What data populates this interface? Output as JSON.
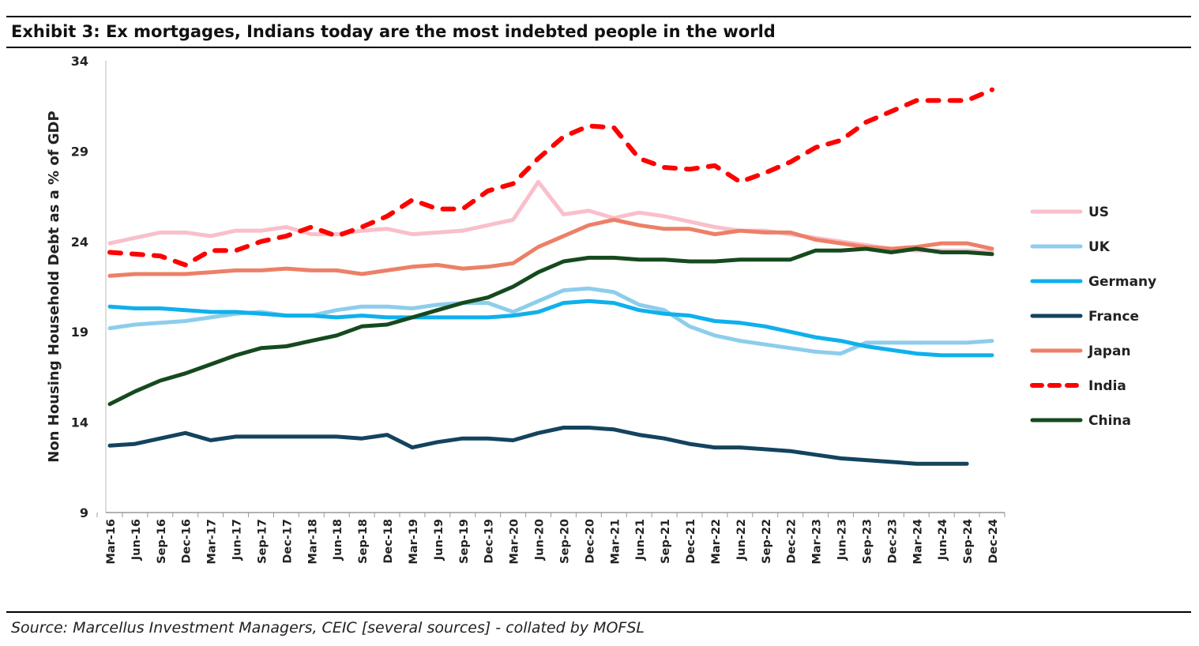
{
  "title": "Exhibit 3: Ex mortgages, Indians today are the most indebted people in the world",
  "source": "Source: Marcellus Investment Managers, CEIC [several sources] - collated by MOFSL",
  "chart_data": {
    "type": "line",
    "title": "Exhibit 3: Ex mortgages, Indians today are the most indebted people in the world",
    "xlabel": "",
    "ylabel": "Non Housing Household Debt as a % of GDP",
    "ylim": [
      9,
      34
    ],
    "yticks": [
      "9",
      "14",
      "19",
      "24",
      "29",
      "34"
    ],
    "grid": false,
    "legend_position": "right",
    "categories": [
      "Mar-16",
      "Jun-16",
      "Sep-16",
      "Dec-16",
      "Mar-17",
      "Jun-17",
      "Sep-17",
      "Dec-17",
      "Mar-18",
      "Jun-18",
      "Sep-18",
      "Dec-18",
      "Mar-19",
      "Jun-19",
      "Sep-19",
      "Dec-19",
      "Mar-20",
      "Jun-20",
      "Sep-20",
      "Dec-20",
      "Mar-21",
      "Jun-21",
      "Sep-21",
      "Dec-21",
      "Mar-22",
      "Jun-22",
      "Sep-22",
      "Dec-22",
      "Mar-23",
      "Jun-23",
      "Sep-23",
      "Dec-23",
      "Mar-24",
      "Jun-24",
      "Sep-24",
      "Dec-24"
    ],
    "series": [
      {
        "name": "US",
        "color": "#F9BFCB",
        "dash": false,
        "values": [
          23.9,
          24.2,
          24.5,
          24.5,
          24.3,
          24.6,
          24.6,
          24.8,
          24.4,
          24.4,
          24.6,
          24.7,
          24.4,
          24.5,
          24.6,
          24.9,
          25.2,
          27.3,
          25.5,
          25.7,
          25.3,
          25.6,
          25.4,
          25.1,
          24.8,
          24.6,
          24.6,
          24.4,
          24.2,
          24.0,
          23.8,
          23.6,
          23.5,
          23.5,
          23.5,
          23.4
        ]
      },
      {
        "name": "UK",
        "color": "#8DCDEB",
        "dash": false,
        "values": [
          19.2,
          19.4,
          19.5,
          19.6,
          19.8,
          20.0,
          20.1,
          19.9,
          19.9,
          20.2,
          20.4,
          20.4,
          20.3,
          20.5,
          20.6,
          20.6,
          20.1,
          20.7,
          21.3,
          21.4,
          21.2,
          20.5,
          20.2,
          19.3,
          18.8,
          18.5,
          18.3,
          18.1,
          17.9,
          17.8,
          18.4,
          18.4,
          18.4,
          18.4,
          18.4,
          18.5
        ]
      },
      {
        "name": "Germany",
        "color": "#0FB0EC",
        "dash": false,
        "values": [
          20.4,
          20.3,
          20.3,
          20.2,
          20.1,
          20.1,
          20.0,
          19.9,
          19.9,
          19.8,
          19.9,
          19.8,
          19.8,
          19.8,
          19.8,
          19.8,
          19.9,
          20.1,
          20.6,
          20.7,
          20.6,
          20.2,
          20.0,
          19.9,
          19.6,
          19.5,
          19.3,
          19.0,
          18.7,
          18.5,
          18.2,
          18.0,
          17.8,
          17.7,
          17.7,
          17.7
        ]
      },
      {
        "name": "France",
        "color": "#14435E",
        "dash": false,
        "values": [
          12.7,
          12.8,
          13.1,
          13.4,
          13.0,
          13.2,
          13.2,
          13.2,
          13.2,
          13.2,
          13.1,
          13.3,
          12.6,
          12.9,
          13.1,
          13.1,
          13.0,
          13.4,
          13.7,
          13.7,
          13.6,
          13.3,
          13.1,
          12.8,
          12.6,
          12.6,
          12.5,
          12.4,
          12.2,
          12.0,
          11.9,
          11.8,
          11.7,
          11.7,
          11.7,
          null
        ]
      },
      {
        "name": "Japan",
        "color": "#EC8067",
        "dash": false,
        "values": [
          22.1,
          22.2,
          22.2,
          22.2,
          22.3,
          22.4,
          22.4,
          22.5,
          22.4,
          22.4,
          22.2,
          22.4,
          22.6,
          22.7,
          22.5,
          22.6,
          22.8,
          23.7,
          24.3,
          24.9,
          25.2,
          24.9,
          24.7,
          24.7,
          24.4,
          24.6,
          24.5,
          24.5,
          24.1,
          23.9,
          23.7,
          23.6,
          23.7,
          23.9,
          23.9,
          23.6
        ]
      },
      {
        "name": "India",
        "color": "#FF0000",
        "dash": true,
        "values": [
          23.4,
          23.3,
          23.2,
          22.7,
          23.5,
          23.5,
          24.0,
          24.3,
          24.8,
          24.3,
          24.8,
          25.4,
          26.3,
          25.8,
          25.8,
          26.8,
          27.2,
          28.6,
          29.8,
          30.4,
          30.3,
          28.6,
          28.1,
          28.0,
          28.2,
          27.3,
          27.8,
          28.4,
          29.2,
          29.6,
          30.6,
          31.2,
          31.8,
          31.8,
          31.8,
          32.4
        ]
      },
      {
        "name": "China",
        "color": "#154A1E",
        "dash": false,
        "values": [
          15.0,
          15.7,
          16.3,
          16.7,
          17.2,
          17.7,
          18.1,
          18.2,
          18.5,
          18.8,
          19.3,
          19.4,
          19.8,
          20.2,
          20.6,
          20.9,
          21.5,
          22.3,
          22.9,
          23.1,
          23.1,
          23.0,
          23.0,
          22.9,
          22.9,
          23.0,
          23.0,
          23.0,
          23.5,
          23.5,
          23.6,
          23.4,
          23.6,
          23.4,
          23.4,
          23.3
        ]
      }
    ]
  }
}
